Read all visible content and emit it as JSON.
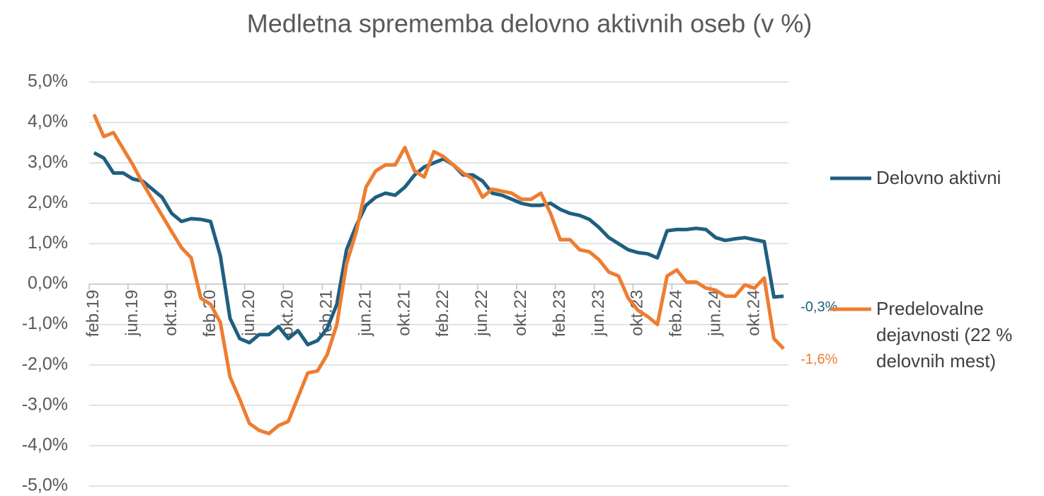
{
  "chart_data": {
    "type": "line",
    "title": "Medletna sprememba delovno aktivnih oseb (v %)",
    "categories": [
      "feb.19",
      null,
      null,
      null,
      "jun.19",
      null,
      null,
      null,
      "okt.19",
      null,
      null,
      null,
      "feb.20",
      null,
      null,
      null,
      "jun.20",
      null,
      null,
      null,
      "okt.20",
      null,
      null,
      null,
      "feb.21",
      null,
      null,
      null,
      "jun.21",
      null,
      null,
      null,
      "okt.21",
      null,
      null,
      null,
      "feb.22",
      null,
      null,
      null,
      "jun.22",
      null,
      null,
      null,
      "okt.22",
      null,
      null,
      null,
      "feb.23",
      null,
      null,
      null,
      "jun.23",
      null,
      null,
      null,
      "okt.23",
      null,
      null,
      null,
      "feb.24",
      null,
      null,
      null,
      "jun.24",
      null,
      null,
      null,
      "okt.24",
      null,
      null,
      null
    ],
    "series": [
      {
        "name": "Delovno aktivni",
        "color": "#1f5f80",
        "values": [
          3.25,
          3.12,
          2.75,
          2.75,
          2.6,
          2.55,
          2.35,
          2.15,
          1.75,
          1.55,
          1.62,
          1.6,
          1.55,
          0.7,
          -0.85,
          -1.35,
          -1.45,
          -1.25,
          -1.25,
          -1.05,
          -1.35,
          -1.15,
          -1.5,
          -1.4,
          -1.1,
          -0.5,
          0.85,
          1.45,
          1.95,
          2.15,
          2.25,
          2.2,
          2.4,
          2.7,
          2.9,
          3.0,
          3.1,
          2.95,
          2.7,
          2.7,
          2.55,
          2.25,
          2.2,
          2.1,
          2.0,
          1.95,
          1.95,
          2.0,
          1.85,
          1.75,
          1.7,
          1.6,
          1.4,
          1.15,
          1.0,
          0.85,
          0.78,
          0.75,
          0.65,
          1.32,
          1.35,
          1.35,
          1.38,
          1.35,
          1.15,
          1.08,
          1.12,
          1.15,
          1.1,
          1.05,
          -0.32,
          -0.3
        ],
        "value_labels": [
          null,
          null,
          null,
          null,
          null,
          null,
          null,
          null,
          null,
          null,
          null,
          null,
          null,
          null,
          null,
          null,
          null,
          null,
          null,
          null,
          null,
          null,
          null,
          null,
          null,
          null,
          null,
          null,
          null,
          null,
          null,
          null,
          null,
          null,
          null,
          null,
          null,
          null,
          null,
          null,
          null,
          null,
          null,
          null,
          null,
          null,
          null,
          null,
          null,
          null,
          null,
          null,
          null,
          null,
          null,
          null,
          null,
          null,
          null,
          null,
          null,
          null,
          null,
          null,
          null,
          null,
          null,
          null,
          null,
          null,
          null,
          "-0,3%"
        ]
      },
      {
        "name": "Predelovalne dejavnosti (22 % delovnih mest)",
        "color": "#ee7d31",
        "values": [
          4.2,
          3.65,
          3.75,
          3.35,
          2.95,
          2.5,
          2.1,
          1.7,
          1.3,
          0.9,
          0.65,
          -0.35,
          -0.5,
          -0.95,
          -2.3,
          -2.85,
          -3.45,
          -3.62,
          -3.7,
          -3.5,
          -3.4,
          -2.8,
          -2.2,
          -2.15,
          -1.75,
          -1.0,
          0.5,
          1.3,
          2.4,
          2.8,
          2.95,
          2.95,
          3.38,
          2.8,
          2.65,
          3.28,
          3.15,
          2.95,
          2.75,
          2.6,
          2.15,
          2.35,
          2.3,
          2.25,
          2.1,
          2.1,
          2.25,
          1.75,
          1.1,
          1.1,
          0.85,
          0.8,
          0.6,
          0.3,
          0.2,
          -0.35,
          -0.65,
          -0.8,
          -1.0,
          0.2,
          0.35,
          0.05,
          0.05,
          -0.1,
          -0.15,
          -0.3,
          -0.3,
          -0.02,
          -0.1,
          0.15,
          -1.35,
          -1.6
        ],
        "value_labels": [
          null,
          null,
          null,
          null,
          null,
          null,
          null,
          null,
          null,
          null,
          null,
          null,
          null,
          null,
          null,
          null,
          null,
          null,
          null,
          null,
          null,
          null,
          null,
          null,
          null,
          null,
          null,
          null,
          null,
          null,
          null,
          null,
          null,
          null,
          null,
          null,
          null,
          null,
          null,
          null,
          null,
          null,
          null,
          null,
          null,
          null,
          null,
          null,
          null,
          null,
          null,
          null,
          null,
          null,
          null,
          null,
          null,
          null,
          null,
          null,
          null,
          null,
          null,
          null,
          null,
          null,
          null,
          null,
          null,
          null,
          null,
          "-1,6%"
        ]
      }
    ],
    "ylim": [
      -5,
      5
    ],
    "yticks": [
      {
        "value": 5,
        "label": "5,0%"
      },
      {
        "value": 4,
        "label": "4,0%"
      },
      {
        "value": 3,
        "label": "3,0%"
      },
      {
        "value": 2,
        "label": "2,0%"
      },
      {
        "value": 1,
        "label": "1,0%"
      },
      {
        "value": 0,
        "label": "0,0%"
      },
      {
        "value": -1,
        "label": "-1,0%"
      },
      {
        "value": -2,
        "label": "-2,0%"
      },
      {
        "value": -3,
        "label": "-3,0%"
      },
      {
        "value": -4,
        "label": "-4,0%"
      },
      {
        "value": -5,
        "label": "-5,0%"
      }
    ],
    "grid": true,
    "legend": "right"
  }
}
